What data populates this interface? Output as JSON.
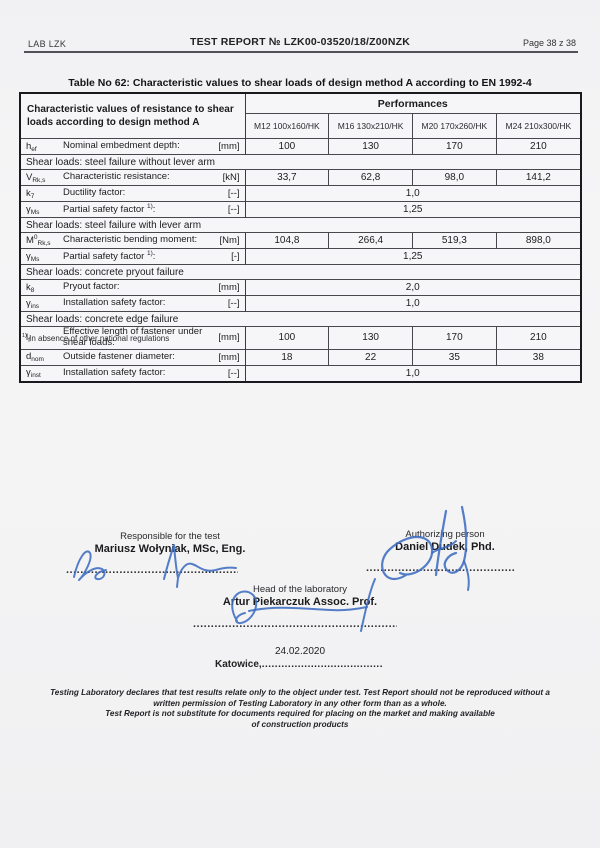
{
  "header": {
    "lab": "LAB LZK",
    "title": "TEST REPORT № LZK00-03520/18/Z00NZK",
    "page": "Page 38 z 38"
  },
  "table": {
    "title": "Table No 62: Characteristic values to shear loads of design method A according to EN 1992-4",
    "left_header": "Characteristic values of resistance to shear loads according to design method A",
    "performances_label": "Performances",
    "columns": [
      "M12 100x160/HK",
      "M16 130x210/HK",
      "M20 170x260/HK",
      "M24 210x300/HK"
    ],
    "rows": [
      {
        "type": "data",
        "sym": "h",
        "sub": "ef",
        "label": "Nominal embedment depth:",
        "unit": "[mm]",
        "values": [
          "100",
          "130",
          "170",
          "210"
        ]
      },
      {
        "type": "section",
        "label": "Shear loads: steel failure without lever arm"
      },
      {
        "type": "data",
        "sym": "V",
        "sub": "Rk,s",
        "label": "Characteristic resistance:",
        "unit": "[kN]",
        "values": [
          "33,7",
          "62,8",
          "98,0",
          "141,2"
        ]
      },
      {
        "type": "span",
        "sym": "k",
        "sub": "7",
        "label": "Ductility factor:",
        "unit": "[--]",
        "value": "1,0"
      },
      {
        "type": "span",
        "sym": "γ",
        "sub": "Ms",
        "label": "Partial safety factor",
        "marker": "1)",
        "unit": "[--]",
        "value": "1,25"
      },
      {
        "type": "section",
        "label": "Shear loads: steel failure with lever arm"
      },
      {
        "type": "data",
        "sym": "M",
        "sup": "0",
        "sub": "Rk,s",
        "label": "Characteristic bending moment:",
        "unit": "[Nm]",
        "values": [
          "104,8",
          "266,4",
          "519,3",
          "898,0"
        ]
      },
      {
        "type": "span",
        "sym": "γ",
        "sub": "Ms",
        "label": "Partial safety factor",
        "marker": "1)",
        "unit": "[-]",
        "value": "1,25"
      },
      {
        "type": "section",
        "label": "Shear loads: concrete pryout failure"
      },
      {
        "type": "span",
        "sym": "k",
        "sub": "8",
        "label": "Pryout factor:",
        "unit": "[mm]",
        "value": "2,0"
      },
      {
        "type": "span",
        "sym": "γ",
        "sub": "ins",
        "label": "Installation safety factor:",
        "unit": "[--]",
        "value": "1,0"
      },
      {
        "type": "section",
        "label": "Shear loads: concrete edge failure"
      },
      {
        "type": "data",
        "sym": "l",
        "sub": "f",
        "label": "Effective length of fastener under shear loads:",
        "unit": "[mm]",
        "values": [
          "100",
          "130",
          "170",
          "210"
        ]
      },
      {
        "type": "data",
        "sym": "d",
        "sub": "nom",
        "label": "Outside fastener diameter:",
        "unit": "[mm]",
        "values": [
          "18",
          "22",
          "35",
          "38"
        ]
      },
      {
        "type": "span",
        "sym": "γ",
        "sub": "inst",
        "label": "Installation safety factor:",
        "unit": "[--]",
        "value": "1,0"
      }
    ],
    "footnote_marker": "1)",
    "footnote": "In absence of other national regulations"
  },
  "signatures": {
    "responsible": {
      "role": "Responsible for the test",
      "name": "Mariusz Wołyniak, MSc, Eng.",
      "dots": "..................................................."
    },
    "authorizing": {
      "role": "Authorizing person",
      "name": "Daniel Dudek, Phd.",
      "dots": "............................................"
    },
    "head": {
      "role": "Head of the laboratory",
      "name": "Artur Piekarczuk Assoc. Prof.",
      "dots": "..........................................................."
    },
    "date": "24.02.2020",
    "place": "Katowice,",
    "place_dots": "....................................."
  },
  "disclaimer": [
    "Testing Laboratory declares that test results relate only to the object under test. Test Report should not be reproduced without a",
    "written permission of Testing Laboratory in any other form than as a whole.",
    "Test Report is not substitute for documents required for placing on the market and making available",
    "of construction products"
  ],
  "colors": {
    "signature_ink": "#3e6cc2",
    "rule": "#47474c"
  }
}
